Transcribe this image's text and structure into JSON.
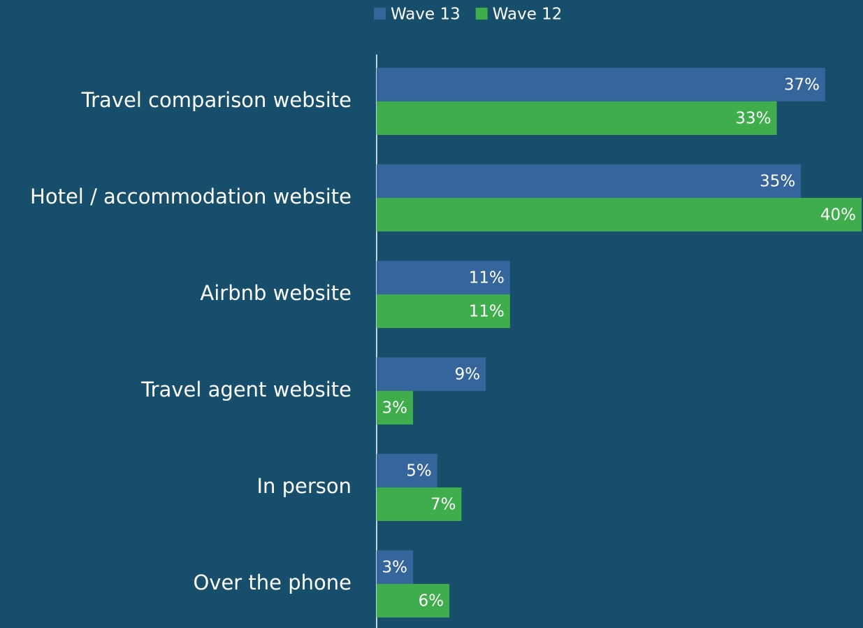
{
  "chart_data": {
    "type": "bar",
    "orientation": "horizontal",
    "categories": [
      "Travel comparison website",
      "Hotel / accommodation website",
      "Airbnb website",
      "Travel agent website",
      "In person",
      "Over the phone"
    ],
    "series": [
      {
        "name": "Wave 13",
        "color": "#35659a",
        "values": [
          37,
          35,
          11,
          9,
          5,
          3
        ],
        "value_labels": [
          "37%",
          "35%",
          "11%",
          "9%",
          "5%",
          "3%"
        ]
      },
      {
        "name": "Wave 12",
        "color": "#3fad4c",
        "values": [
          33,
          40,
          11,
          3,
          7,
          6
        ],
        "value_labels": [
          "33%",
          "40%",
          "11%",
          "3%",
          "7%",
          "6%"
        ]
      }
    ],
    "xlim": [
      0,
      40
    ],
    "legend": "top"
  }
}
